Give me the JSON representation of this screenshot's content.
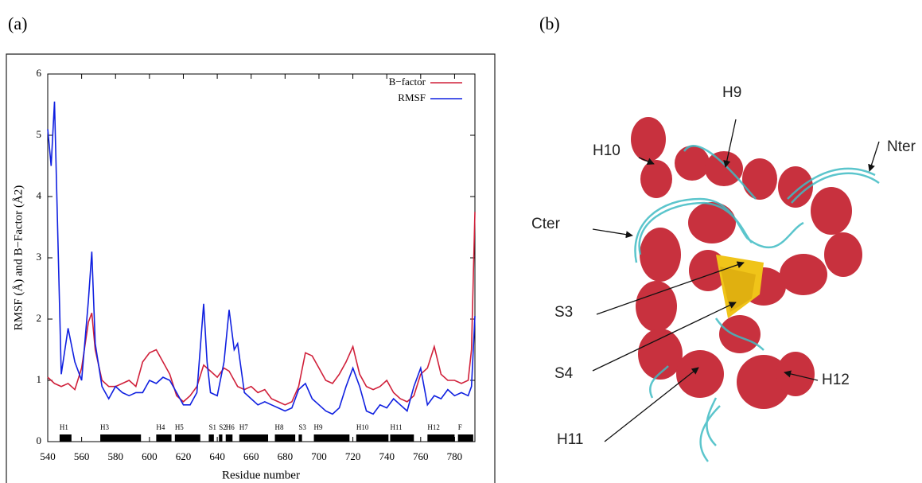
{
  "figure": {
    "panel_a_label": "(a)",
    "panel_b_label": "(b)",
    "structure_labels": [
      "H9",
      "Nter",
      "H10",
      "Cter",
      "S3",
      "S4",
      "H11",
      "H12"
    ]
  },
  "chart_data": {
    "type": "line",
    "x_label": "Residue number",
    "y_label": "RMSF (Å) and B−Factor (Å2)",
    "x": [
      540,
      542,
      544,
      548,
      552,
      556,
      560,
      564,
      566,
      568,
      572,
      576,
      580,
      584,
      588,
      592,
      596,
      600,
      604,
      608,
      612,
      616,
      620,
      624,
      628,
      632,
      634,
      636,
      640,
      644,
      647,
      650,
      652,
      656,
      660,
      664,
      668,
      672,
      676,
      680,
      684,
      688,
      692,
      696,
      700,
      704,
      708,
      712,
      716,
      720,
      724,
      728,
      732,
      736,
      740,
      744,
      748,
      752,
      756,
      760,
      764,
      768,
      772,
      776,
      780,
      784,
      788,
      790,
      792
    ],
    "series": [
      {
        "name": "B−factor",
        "color": "#d0203a",
        "values": [
          1.05,
          1.0,
          0.95,
          0.9,
          0.95,
          0.85,
          1.2,
          1.95,
          2.1,
          1.5,
          1.0,
          0.9,
          0.9,
          0.95,
          1.0,
          0.9,
          1.3,
          1.45,
          1.5,
          1.3,
          1.1,
          0.75,
          0.65,
          0.75,
          0.9,
          1.25,
          1.2,
          1.15,
          1.05,
          1.2,
          1.15,
          1.0,
          0.9,
          0.85,
          0.9,
          0.8,
          0.85,
          0.7,
          0.65,
          0.6,
          0.65,
          0.9,
          1.45,
          1.4,
          1.2,
          1.0,
          0.95,
          1.1,
          1.3,
          1.55,
          1.1,
          0.9,
          0.85,
          0.9,
          1.0,
          0.8,
          0.7,
          0.65,
          0.75,
          1.1,
          1.2,
          1.55,
          1.1,
          1.0,
          1.0,
          0.95,
          1.0,
          1.5,
          3.75
        ]
      },
      {
        "name": "RMSF",
        "color": "#1020e0",
        "values": [
          5.1,
          4.5,
          5.55,
          1.1,
          1.85,
          1.3,
          1.0,
          2.3,
          3.1,
          1.6,
          0.9,
          0.7,
          0.9,
          0.8,
          0.75,
          0.8,
          0.8,
          1.0,
          0.95,
          1.05,
          1.0,
          0.8,
          0.6,
          0.6,
          0.8,
          2.25,
          1.3,
          0.8,
          0.75,
          1.3,
          2.15,
          1.5,
          1.6,
          0.8,
          0.7,
          0.6,
          0.65,
          0.6,
          0.55,
          0.5,
          0.55,
          0.85,
          0.95,
          0.7,
          0.6,
          0.5,
          0.45,
          0.55,
          0.9,
          1.2,
          0.9,
          0.5,
          0.45,
          0.6,
          0.55,
          0.7,
          0.6,
          0.5,
          0.9,
          1.2,
          0.6,
          0.75,
          0.7,
          0.85,
          0.75,
          0.8,
          0.75,
          0.9,
          2.05
        ]
      }
    ],
    "xlim": [
      540,
      792
    ],
    "ylim": [
      0,
      6
    ],
    "xticks": [
      540,
      560,
      580,
      600,
      620,
      640,
      660,
      680,
      700,
      720,
      740,
      760,
      780
    ],
    "yticks": [
      0,
      1,
      2,
      3,
      4,
      5,
      6
    ],
    "legend": "top-right",
    "secondary_structure": [
      {
        "label": "H1",
        "start": 547,
        "end": 554
      },
      {
        "label": "H3",
        "start": 571,
        "end": 595
      },
      {
        "label": "H4",
        "start": 604,
        "end": 613
      },
      {
        "label": "H5",
        "start": 615,
        "end": 630
      },
      {
        "label": "S1",
        "start": 635,
        "end": 638
      },
      {
        "label": "S2",
        "start": 641,
        "end": 643
      },
      {
        "label": "H6",
        "start": 645,
        "end": 649
      },
      {
        "label": "H7",
        "start": 653,
        "end": 670
      },
      {
        "label": "H8",
        "start": 674,
        "end": 686
      },
      {
        "label": "S3",
        "start": 688,
        "end": 690
      },
      {
        "label": "H9",
        "start": 697,
        "end": 718
      },
      {
        "label": "H10",
        "start": 722,
        "end": 741
      },
      {
        "label": "H11",
        "start": 742,
        "end": 756
      },
      {
        "label": "H12",
        "start": 764,
        "end": 780
      },
      {
        "label": "F",
        "start": 782,
        "end": 791
      }
    ]
  }
}
